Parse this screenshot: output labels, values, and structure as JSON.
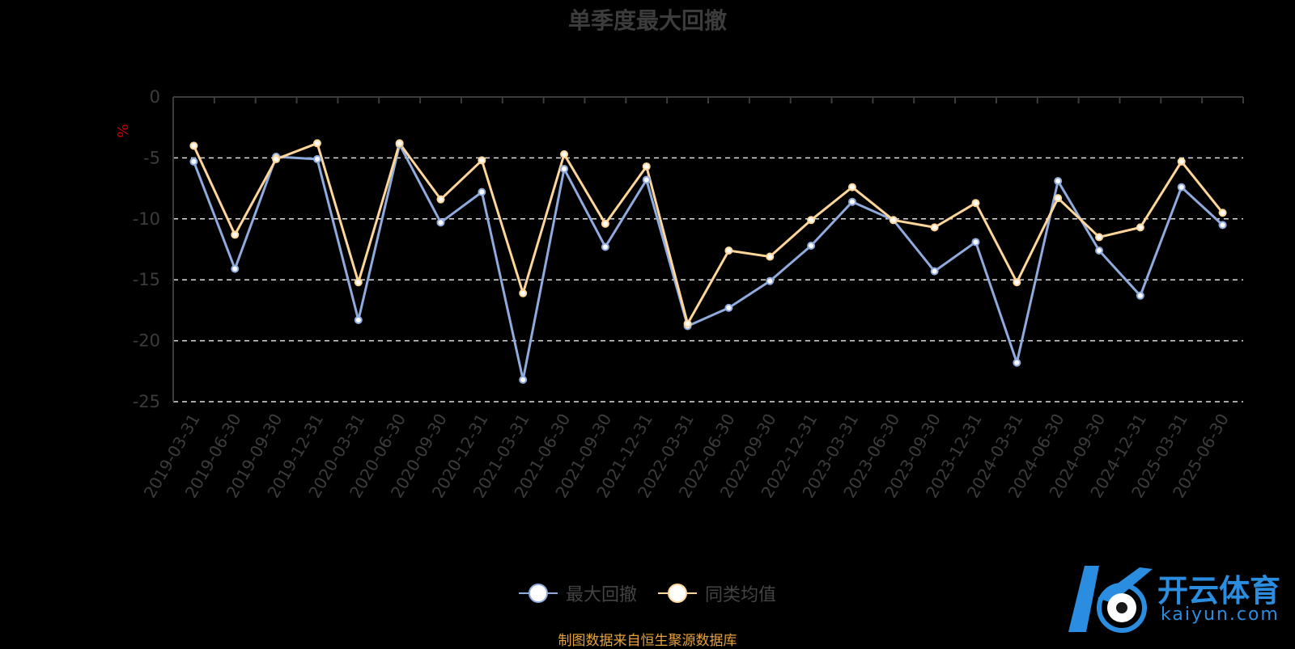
{
  "chart_data": {
    "type": "line",
    "title": "单季度最大回撤",
    "ylabel": "%",
    "ylim": [
      -25,
      0
    ],
    "yticks": [
      "0",
      "-5",
      "-10",
      "-15",
      "-20",
      "-25"
    ],
    "categories": [
      "2019-03-31",
      "2019-06-30",
      "2019-09-30",
      "2019-12-31",
      "2020-03-31",
      "2020-06-30",
      "2020-09-30",
      "2020-12-31",
      "2021-03-31",
      "2021-06-30",
      "2021-09-30",
      "2021-12-31",
      "2022-03-31",
      "2022-06-30",
      "2022-09-30",
      "2022-12-31",
      "2023-03-31",
      "2023-06-30",
      "2023-09-30",
      "2023-12-31",
      "2024-03-31",
      "2024-06-30",
      "2024-09-30",
      "2024-12-31",
      "2025-03-31",
      "2025-06-30"
    ],
    "series": [
      {
        "name": "最大回撤",
        "color": "#8faadc",
        "values": [
          -5.3,
          -14.1,
          -4.9,
          -5.1,
          -18.3,
          -3.9,
          -10.3,
          -7.8,
          -23.2,
          -5.9,
          -12.3,
          -6.8,
          -18.8,
          -17.3,
          -15.1,
          -12.2,
          -8.6,
          -10.1,
          -14.3,
          -11.9,
          -21.8,
          -6.9,
          -12.6,
          -16.3,
          -7.4,
          -10.5
        ]
      },
      {
        "name": "同类均值",
        "color": "#ffd699",
        "values": [
          -4.0,
          -11.3,
          -5.1,
          -3.8,
          -15.2,
          -3.8,
          -8.4,
          -5.2,
          -16.1,
          -4.7,
          -10.4,
          -5.7,
          -18.6,
          -12.6,
          -13.1,
          -10.1,
          -7.4,
          -10.1,
          -10.7,
          -8.7,
          -15.2,
          -8.3,
          -11.5,
          -10.7,
          -5.3,
          -9.5
        ]
      }
    ],
    "grid": true,
    "legend_position": "bottom-center"
  },
  "source_text": "制图数据来自恒生聚源数据库",
  "source_color": "#e6a23c",
  "watermark": {
    "text": "开云体育",
    "sub": "kaiyun.com"
  }
}
